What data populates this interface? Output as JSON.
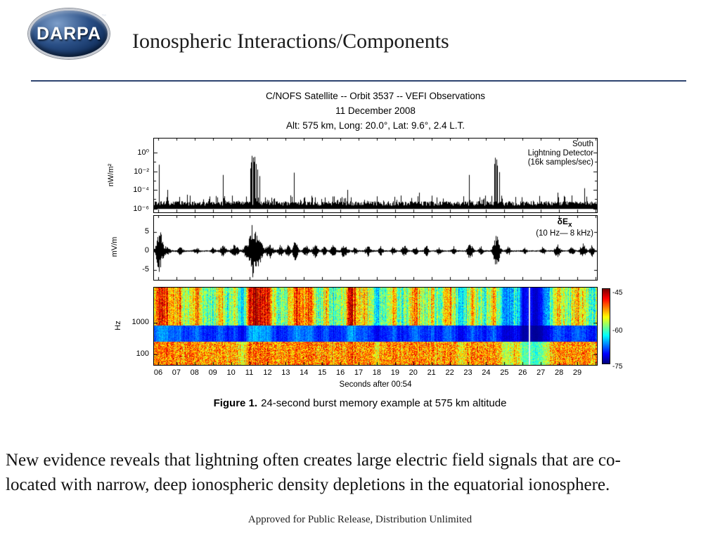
{
  "slide": {
    "logo": {
      "text": "DARPA",
      "tm": "™"
    },
    "title": "Ionospheric Interactions/Components",
    "caption": {
      "bold": "Figure 1.",
      "rest": "24-second burst memory example at 575 km altitude"
    },
    "body_lines": [
      "New evidence reveals that lightning often creates large electric field signals that are co-",
      "located with narrow, deep ionospheric density depletions in the equatorial ionosphere."
    ],
    "footer": "Approved for Public Release, Distribution Unlimited"
  },
  "figure": {
    "title_line1": "C/NOFS Satellite -- Orbit 3537 -- VEFI Observations",
    "title_line2": "11 December 2008",
    "title_line3": "Alt: 575 km, Long: 20.0°, Lat: 9.6°, 2.4 L.T.",
    "xlabel": "Seconds after 00:54",
    "time_range": [
      5.77,
      30.08
    ],
    "x_tick_labels": [
      "06",
      "07",
      "08",
      "09",
      "10",
      "11",
      "12",
      "13",
      "14",
      "15",
      "16",
      "17",
      "18",
      "19",
      "20",
      "21",
      "22",
      "23",
      "24",
      "25",
      "26",
      "27",
      "28",
      "29"
    ],
    "panel1": {
      "ylabel": "nW/m²",
      "yticks": [
        "10⁰",
        "10⁻²",
        "10⁻⁴",
        "10⁻⁶"
      ],
      "note": [
        "South",
        "Lightning Detector",
        "(16k samples/sec)"
      ]
    },
    "panel2": {
      "ylabel": "mV/m",
      "yticks": [
        "5",
        "0",
        "-5"
      ],
      "note_main": "δE",
      "note_sub": "x",
      "note_line2": "(10 Hz— 8 kHz)"
    },
    "panel3": {
      "ylabel": "Hz",
      "yticks": [
        "1000",
        "100"
      ],
      "colorbar_ticks": [
        "-45",
        "-60",
        "-75"
      ]
    }
  },
  "chart_data": [
    {
      "type": "line",
      "name": "south-lightning-detector",
      "annotation": "South Lightning Detector (16k samples/sec)",
      "ylabel": "nW/m²",
      "yscale": "log",
      "ylim": [
        1e-07,
        22
      ],
      "ytick_values": [
        1,
        0.01,
        0.0001,
        1e-06
      ],
      "xlabel": "Seconds after 00:54",
      "x_range_seconds": [
        5.77,
        30.08
      ],
      "baseline_nW_m2": 2e-06,
      "spikes": [
        {
          "t": 6.05,
          "peak": 0.05
        },
        {
          "t": 6.5,
          "peak": 0.0001
        },
        {
          "t": 7.6,
          "peak": 3e-05
        },
        {
          "t": 9.55,
          "peak": 0.004
        },
        {
          "t": 11.05,
          "peak": 0.02
        },
        {
          "t": 11.1,
          "peak": 0.09
        },
        {
          "t": 11.15,
          "peak": 0.45
        },
        {
          "t": 11.2,
          "peak": 0.3
        },
        {
          "t": 11.25,
          "peak": 0.1
        },
        {
          "t": 11.3,
          "peak": 0.35
        },
        {
          "t": 11.35,
          "peak": 0.06
        },
        {
          "t": 11.45,
          "peak": 0.015
        },
        {
          "t": 11.55,
          "peak": 0.003
        },
        {
          "t": 13.45,
          "peak": 0.007
        },
        {
          "t": 16.4,
          "peak": 0.0001
        },
        {
          "t": 20.3,
          "peak": 5e-05
        },
        {
          "t": 23.05,
          "peak": 0.004
        },
        {
          "t": 24.45,
          "peak": 0.06
        },
        {
          "t": 24.5,
          "peak": 0.28
        },
        {
          "t": 24.55,
          "peak": 0.18
        },
        {
          "t": 24.6,
          "peak": 0.04
        },
        {
          "t": 24.7,
          "peak": 0.008
        },
        {
          "t": 27.9,
          "peak": 5e-05
        },
        {
          "t": 29.4,
          "peak": 0.00015
        }
      ]
    },
    {
      "type": "line",
      "name": "delta-Ex-waveform",
      "annotation": "δEx (10 Hz— 8 kHz)",
      "ylabel": "mV/m",
      "ylim": [
        -8.5,
        8.5
      ],
      "ytick_values": [
        5,
        0,
        -5
      ],
      "bursts": [
        {
          "t": 6.05,
          "a": 5.5,
          "w": 0.18
        },
        {
          "t": 6.4,
          "a": 1.2,
          "w": 0.2
        },
        {
          "t": 7.2,
          "a": 0.9,
          "w": 0.15
        },
        {
          "t": 8.1,
          "a": 0.7,
          "w": 0.15
        },
        {
          "t": 9.0,
          "a": 0.8,
          "w": 0.12
        },
        {
          "t": 9.55,
          "a": 1.4,
          "w": 0.15
        },
        {
          "t": 10.2,
          "a": 1.6,
          "w": 0.2
        },
        {
          "t": 10.8,
          "a": 1.3,
          "w": 0.15
        },
        {
          "t": 11.2,
          "a": 7.5,
          "w": 0.22
        },
        {
          "t": 11.55,
          "a": 3.0,
          "w": 0.2
        },
        {
          "t": 12.1,
          "a": 1.8,
          "w": 0.2
        },
        {
          "t": 12.7,
          "a": 1.4,
          "w": 0.15
        },
        {
          "t": 13.1,
          "a": 1.6,
          "w": 0.12
        },
        {
          "t": 13.5,
          "a": 2.4,
          "w": 0.15
        },
        {
          "t": 14.1,
          "a": 1.3,
          "w": 0.15
        },
        {
          "t": 14.6,
          "a": 1.6,
          "w": 0.15
        },
        {
          "t": 15.1,
          "a": 1.1,
          "w": 0.12
        },
        {
          "t": 15.6,
          "a": 1.4,
          "w": 0.15
        },
        {
          "t": 16.2,
          "a": 1.7,
          "w": 0.18
        },
        {
          "t": 16.8,
          "a": 1.0,
          "w": 0.12
        },
        {
          "t": 17.5,
          "a": 1.3,
          "w": 0.15
        },
        {
          "t": 18.2,
          "a": 1.1,
          "w": 0.12
        },
        {
          "t": 18.9,
          "a": 1.0,
          "w": 0.12
        },
        {
          "t": 19.5,
          "a": 1.4,
          "w": 0.15
        },
        {
          "t": 20.1,
          "a": 1.1,
          "w": 0.12
        },
        {
          "t": 20.7,
          "a": 1.3,
          "w": 0.12
        },
        {
          "t": 21.4,
          "a": 0.9,
          "w": 0.12
        },
        {
          "t": 22.2,
          "a": 1.1,
          "w": 0.12
        },
        {
          "t": 23.1,
          "a": 2.2,
          "w": 0.15
        },
        {
          "t": 23.7,
          "a": 1.1,
          "w": 0.12
        },
        {
          "t": 24.55,
          "a": 4.2,
          "w": 0.18
        },
        {
          "t": 25.2,
          "a": 1.0,
          "w": 0.12
        },
        {
          "t": 26.1,
          "a": 0.8,
          "w": 0.1
        },
        {
          "t": 27.1,
          "a": 1.1,
          "w": 0.12
        },
        {
          "t": 27.9,
          "a": 1.6,
          "w": 0.15
        },
        {
          "t": 28.7,
          "a": 1.2,
          "w": 0.12
        },
        {
          "t": 29.3,
          "a": 2.0,
          "w": 0.15
        },
        {
          "t": 29.8,
          "a": 1.4,
          "w": 0.12
        }
      ]
    },
    {
      "type": "heatmap",
      "name": "vlf-spectrogram",
      "ylabel": "Hz",
      "yscale": "log",
      "ytick_values": [
        1000,
        100
      ],
      "freq_range_hz": [
        44,
        13600
      ],
      "colorbar_db": [
        -75,
        -45
      ],
      "colormap": "jet",
      "dark_band_hz": [
        250,
        700
      ],
      "white_line_t": 26.35,
      "red_streaks": [
        {
          "t": 6.2,
          "w": 0.5,
          "s": 0.45
        },
        {
          "t": 7.1,
          "w": 0.3,
          "s": 0.3
        },
        {
          "t": 8.1,
          "w": 0.25,
          "s": 0.35
        },
        {
          "t": 9.4,
          "w": 0.2,
          "s": 0.25
        },
        {
          "t": 10.2,
          "w": 0.2,
          "s": 0.2
        },
        {
          "t": 11.3,
          "w": 0.5,
          "s": 0.55
        },
        {
          "t": 12.0,
          "w": 0.3,
          "s": 0.35
        },
        {
          "t": 13.6,
          "w": 0.4,
          "s": 0.4
        },
        {
          "t": 14.3,
          "w": 0.3,
          "s": 0.3
        },
        {
          "t": 15.2,
          "w": 0.2,
          "s": 0.2
        },
        {
          "t": 16.6,
          "w": 0.4,
          "s": 0.45
        },
        {
          "t": 17.3,
          "w": 0.2,
          "s": 0.25
        },
        {
          "t": 18.9,
          "w": 0.2,
          "s": 0.2
        },
        {
          "t": 20.1,
          "w": 0.3,
          "s": 0.3
        },
        {
          "t": 21.0,
          "w": 0.2,
          "s": 0.2
        },
        {
          "t": 21.9,
          "w": 0.3,
          "s": 0.3
        },
        {
          "t": 23.2,
          "w": 0.2,
          "s": 0.25
        },
        {
          "t": 24.4,
          "w": 0.2,
          "s": 0.3
        },
        {
          "t": 27.9,
          "w": 0.3,
          "s": 0.25
        },
        {
          "t": 29.0,
          "w": 0.3,
          "s": 0.3
        }
      ],
      "dark_patches": [
        {
          "t": 10.6,
          "w": 0.2,
          "s": 0.4
        },
        {
          "t": 18.0,
          "w": 0.15,
          "s": 0.3
        },
        {
          "t": 22.6,
          "w": 0.2,
          "s": 0.35
        },
        {
          "t": 25.1,
          "w": 0.35,
          "s": 0.5
        },
        {
          "t": 26.0,
          "w": 0.25,
          "s": 0.55
        },
        {
          "t": 26.7,
          "w": 0.6,
          "s": 0.85
        }
      ]
    }
  ]
}
